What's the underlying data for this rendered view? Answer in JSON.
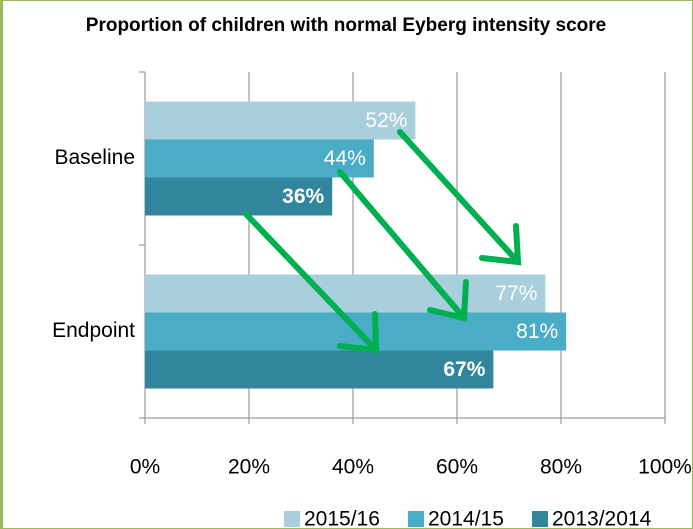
{
  "chart_data": {
    "type": "barh",
    "title": "Proportion of children with normal Eyberg intensity score",
    "categories": [
      "Baseline",
      "Endpoint"
    ],
    "series": [
      {
        "name": "2015/16",
        "color": "#a9cfdc",
        "values": [
          52,
          77
        ],
        "value_labels": [
          "52%",
          "77%"
        ],
        "label_bold": false
      },
      {
        "name": "2014/15",
        "color": "#4bacc6",
        "values": [
          44,
          81
        ],
        "value_labels": [
          "44%",
          "81%"
        ],
        "label_bold": false
      },
      {
        "name": "2013/2014",
        "color": "#31859c",
        "values": [
          36,
          67
        ],
        "value_labels": [
          "36%",
          "67%"
        ],
        "label_bold": true
      }
    ],
    "xlim": [
      0,
      100
    ],
    "xticks": [
      {
        "value": 0,
        "label": "0%"
      },
      {
        "value": 20,
        "label": "20%"
      },
      {
        "value": 40,
        "label": "40%"
      },
      {
        "value": 60,
        "label": "60%"
      },
      {
        "value": 80,
        "label": "80%"
      },
      {
        "value": 100,
        "label": "100%"
      }
    ],
    "grid": true,
    "legend": "bottom"
  }
}
